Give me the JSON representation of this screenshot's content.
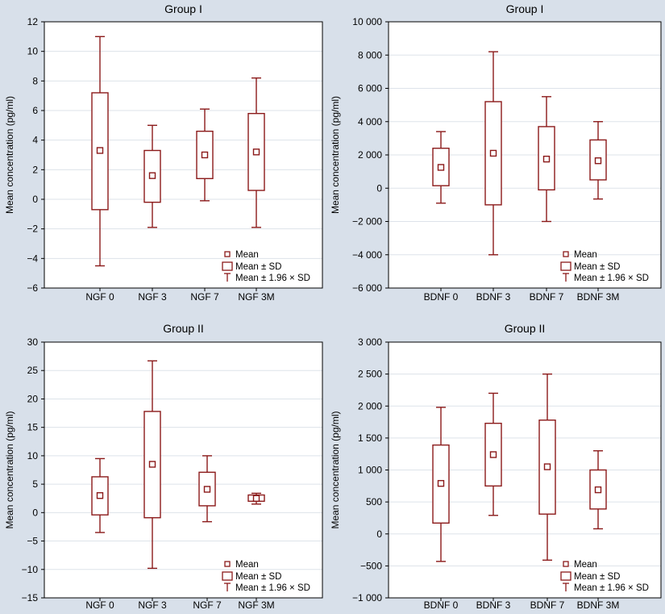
{
  "colors": {
    "background": "#d8e0ea",
    "plot_background": "#ffffff",
    "box": "#8b1a1a",
    "grid": "#dde3ea",
    "axis": "#000000"
  },
  "legend_labels": {
    "mean": "Mean",
    "sd": "Mean ± SD",
    "ci": "Mean ± 1.96 × SD"
  },
  "chart_data": [
    {
      "type": "box",
      "title": "Group I",
      "xlabel": "",
      "ylabel": "Mean concentration (pg/ml)",
      "ylim": [
        -6,
        12
      ],
      "ticks": [
        {
          "value": -6,
          "label": "−6"
        },
        {
          "value": -4,
          "label": "−4"
        },
        {
          "value": -2,
          "label": "−2"
        },
        {
          "value": 0,
          "label": "0"
        },
        {
          "value": 2,
          "label": "2"
        },
        {
          "value": 4,
          "label": "4"
        },
        {
          "value": 6,
          "label": "6"
        },
        {
          "value": 8,
          "label": "8"
        },
        {
          "value": 10,
          "label": "10"
        },
        {
          "value": 12,
          "label": "12"
        }
      ],
      "legend": "bottom-right",
      "grid": true,
      "categories": [
        "NGF 0",
        "NGF 3",
        "NGF 7",
        "NGF 3M"
      ],
      "mean": [
        3.3,
        1.6,
        3.0,
        3.2
      ],
      "sd_low": [
        -0.7,
        -0.2,
        1.4,
        0.6
      ],
      "sd_high": [
        7.2,
        3.3,
        4.6,
        5.8
      ],
      "ci_low": [
        -4.5,
        -1.9,
        -0.1,
        -1.9
      ],
      "ci_high": [
        11.0,
        5.0,
        6.1,
        8.2
      ]
    },
    {
      "type": "box",
      "title": "Group I",
      "xlabel": "",
      "ylabel": "Mean concentration (pg/ml)",
      "ylim": [
        -6000,
        10000
      ],
      "ticks": [
        {
          "value": -6000,
          "label": "−6 000"
        },
        {
          "value": -4000,
          "label": "−4 000"
        },
        {
          "value": -2000,
          "label": "−2 000"
        },
        {
          "value": 0,
          "label": "0"
        },
        {
          "value": 2000,
          "label": "2 000"
        },
        {
          "value": 4000,
          "label": "4 000"
        },
        {
          "value": 6000,
          "label": "6 000"
        },
        {
          "value": 8000,
          "label": "8 000"
        },
        {
          "value": 10000,
          "label": "10 000"
        }
      ],
      "legend": "bottom-right",
      "grid": true,
      "categories": [
        "BDNF 0",
        "BDNF 3",
        "BDNF 7",
        "BDNF 3M"
      ],
      "mean": [
        1250,
        2100,
        1750,
        1650
      ],
      "sd_low": [
        150,
        -1000,
        -100,
        500
      ],
      "sd_high": [
        2400,
        5200,
        3700,
        2900
      ],
      "ci_low": [
        -900,
        -4000,
        -2000,
        -650
      ],
      "ci_high": [
        3400,
        8200,
        5500,
        4000
      ]
    },
    {
      "type": "box",
      "title": "Group II",
      "xlabel": "",
      "ylabel": "Mean concentration (pg/ml)",
      "ylim": [
        -15,
        30
      ],
      "ticks": [
        {
          "value": -15,
          "label": "−15"
        },
        {
          "value": -10,
          "label": "−10"
        },
        {
          "value": -5,
          "label": "−5"
        },
        {
          "value": 0,
          "label": "0"
        },
        {
          "value": 5,
          "label": "5"
        },
        {
          "value": 10,
          "label": "10"
        },
        {
          "value": 15,
          "label": "15"
        },
        {
          "value": 20,
          "label": "20"
        },
        {
          "value": 25,
          "label": "25"
        },
        {
          "value": 30,
          "label": "30"
        }
      ],
      "legend": "bottom-right",
      "grid": true,
      "categories": [
        "NGF 0",
        "NGF 3",
        "NGF 7",
        "NGF 3M"
      ],
      "mean": [
        3.0,
        8.5,
        4.1,
        2.5
      ],
      "sd_low": [
        -0.4,
        -0.9,
        1.2,
        2.0
      ],
      "sd_high": [
        6.3,
        17.8,
        7.1,
        3.1
      ],
      "ci_low": [
        -3.5,
        -9.8,
        -1.6,
        1.5
      ],
      "ci_high": [
        9.5,
        26.7,
        10.0,
        3.4
      ]
    },
    {
      "type": "box",
      "title": "Group II",
      "xlabel": "",
      "ylabel": "Mean concentration (pg/ml)",
      "ylim": [
        -1000,
        3000
      ],
      "ticks": [
        {
          "value": -1000,
          "label": "−1 000"
        },
        {
          "value": -500,
          "label": "−500"
        },
        {
          "value": 0,
          "label": "0"
        },
        {
          "value": 500,
          "label": "500"
        },
        {
          "value": 1000,
          "label": "1 000"
        },
        {
          "value": 1500,
          "label": "1 500"
        },
        {
          "value": 2000,
          "label": "2 000"
        },
        {
          "value": 2500,
          "label": "2 500"
        },
        {
          "value": 3000,
          "label": "3 000"
        }
      ],
      "legend": "bottom-right",
      "grid": true,
      "categories": [
        "BDNF 0",
        "BDNF 3",
        "BDNF 7",
        "BDNF 3M"
      ],
      "mean": [
        790,
        1240,
        1050,
        690
      ],
      "sd_low": [
        170,
        750,
        310,
        390
      ],
      "sd_high": [
        1390,
        1730,
        1780,
        1000
      ],
      "ci_low": [
        -430,
        290,
        -410,
        80
      ],
      "ci_high": [
        1980,
        2200,
        2500,
        1300
      ]
    }
  ]
}
